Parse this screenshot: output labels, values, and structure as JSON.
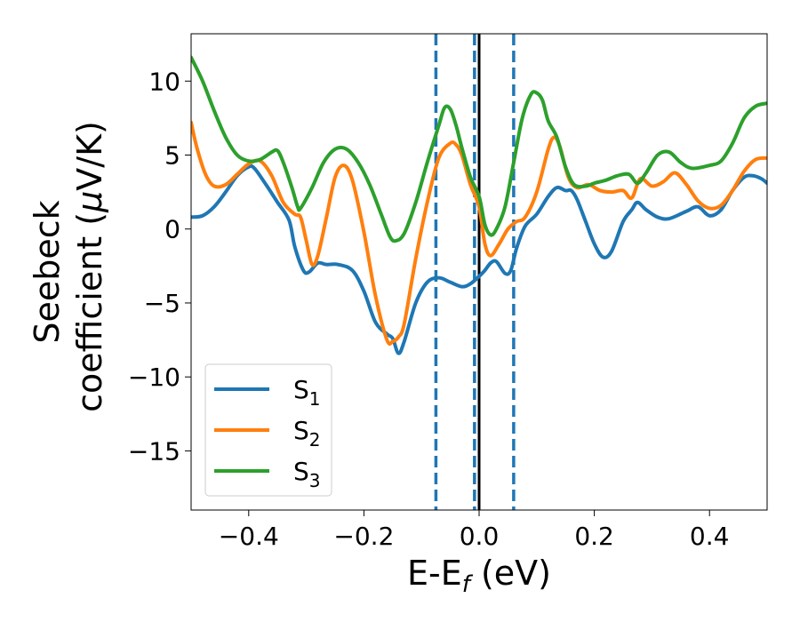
{
  "chart_data": {
    "type": "line",
    "title": "",
    "xlabel": {
      "main": "E-E",
      "sub": "f",
      "suffix": " (eV)"
    },
    "ylabel": {
      "line1": "Seebeck",
      "line2_prefix": "coefficient  (",
      "mu": "μ",
      "line2_suffix": "V/K)"
    },
    "xlim": [
      -0.5,
      0.5
    ],
    "ylim": [
      -19,
      13.2
    ],
    "xticks": [
      -0.4,
      -0.2,
      0.0,
      0.2,
      0.4
    ],
    "xtick_labels": [
      "−0.4",
      "−0.2",
      "0.0",
      "0.2",
      "0.4"
    ],
    "yticks": [
      10,
      5,
      0,
      -5,
      -10,
      -15
    ],
    "ytick_labels": [
      "10",
      "5",
      "0",
      "−5",
      "−10",
      "−15"
    ],
    "grid": false,
    "legend_position": "lower-left",
    "vlines": [
      {
        "x": -0.075,
        "style": "dashed",
        "color": "#1f77b4"
      },
      {
        "x": -0.008,
        "style": "dashed",
        "color": "#1f77b4"
      },
      {
        "x": 0.0,
        "style": "solid",
        "color": "#000000"
      },
      {
        "x": 0.06,
        "style": "dashed",
        "color": "#1f77b4"
      }
    ],
    "series": [
      {
        "name": "S",
        "sub": "1",
        "color": "#1f77b4",
        "points": [
          [
            -0.5,
            0.8
          ],
          [
            -0.48,
            0.9
          ],
          [
            -0.46,
            1.5
          ],
          [
            -0.44,
            2.5
          ],
          [
            -0.42,
            3.6
          ],
          [
            -0.4,
            4.2
          ],
          [
            -0.39,
            4.1
          ],
          [
            -0.37,
            3.0
          ],
          [
            -0.35,
            1.8
          ],
          [
            -0.33,
            0.6
          ],
          [
            -0.32,
            -1.2
          ],
          [
            -0.305,
            -2.8
          ],
          [
            -0.295,
            -2.9
          ],
          [
            -0.28,
            -2.3
          ],
          [
            -0.265,
            -2.4
          ],
          [
            -0.245,
            -2.4
          ],
          [
            -0.22,
            -2.8
          ],
          [
            -0.2,
            -4.2
          ],
          [
            -0.18,
            -6.3
          ],
          [
            -0.16,
            -7.1
          ],
          [
            -0.15,
            -7.4
          ],
          [
            -0.14,
            -8.4
          ],
          [
            -0.13,
            -7.6
          ],
          [
            -0.11,
            -5.0
          ],
          [
            -0.09,
            -3.6
          ],
          [
            -0.07,
            -3.3
          ],
          [
            -0.05,
            -3.6
          ],
          [
            -0.03,
            -3.9
          ],
          [
            -0.015,
            -3.7
          ],
          [
            0.0,
            -3.2
          ],
          [
            0.01,
            -2.8
          ],
          [
            0.02,
            -2.3
          ],
          [
            0.03,
            -2.2
          ],
          [
            0.045,
            -3.0
          ],
          [
            0.055,
            -2.8
          ],
          [
            0.065,
            -1.3
          ],
          [
            0.08,
            0.2
          ],
          [
            0.1,
            1.0
          ],
          [
            0.12,
            2.2
          ],
          [
            0.135,
            2.8
          ],
          [
            0.15,
            2.6
          ],
          [
            0.16,
            2.6
          ],
          [
            0.17,
            2.0
          ],
          [
            0.185,
            0.5
          ],
          [
            0.2,
            -1.0
          ],
          [
            0.215,
            -1.9
          ],
          [
            0.23,
            -1.5
          ],
          [
            0.25,
            0.5
          ],
          [
            0.265,
            1.3
          ],
          [
            0.275,
            1.8
          ],
          [
            0.29,
            1.3
          ],
          [
            0.31,
            0.8
          ],
          [
            0.33,
            0.7
          ],
          [
            0.36,
            1.2
          ],
          [
            0.38,
            1.5
          ],
          [
            0.4,
            0.9
          ],
          [
            0.42,
            1.3
          ],
          [
            0.44,
            2.6
          ],
          [
            0.46,
            3.5
          ],
          [
            0.475,
            3.6
          ],
          [
            0.49,
            3.4
          ],
          [
            0.5,
            3.1
          ]
        ]
      },
      {
        "name": "S",
        "sub": "2",
        "color": "#ff7f0e",
        "points": [
          [
            -0.5,
            7.2
          ],
          [
            -0.49,
            5.5
          ],
          [
            -0.475,
            3.7
          ],
          [
            -0.46,
            2.9
          ],
          [
            -0.44,
            3.0
          ],
          [
            -0.42,
            3.7
          ],
          [
            -0.4,
            4.4
          ],
          [
            -0.38,
            4.6
          ],
          [
            -0.36,
            3.6
          ],
          [
            -0.34,
            1.8
          ],
          [
            -0.32,
            1.0
          ],
          [
            -0.31,
            0.8
          ],
          [
            -0.3,
            -0.8
          ],
          [
            -0.29,
            -2.4
          ],
          [
            -0.28,
            -1.8
          ],
          [
            -0.265,
            0.8
          ],
          [
            -0.25,
            3.5
          ],
          [
            -0.235,
            4.3
          ],
          [
            -0.22,
            3.3
          ],
          [
            -0.2,
            -0.2
          ],
          [
            -0.18,
            -4.5
          ],
          [
            -0.16,
            -7.5
          ],
          [
            -0.15,
            -7.6
          ],
          [
            -0.14,
            -7.3
          ],
          [
            -0.13,
            -6.4
          ],
          [
            -0.11,
            -2.0
          ],
          [
            -0.09,
            1.8
          ],
          [
            -0.07,
            4.8
          ],
          [
            -0.05,
            5.8
          ],
          [
            -0.04,
            5.7
          ],
          [
            -0.03,
            5.0
          ],
          [
            -0.015,
            3.0
          ],
          [
            0.0,
            1.5
          ],
          [
            0.01,
            -1.0
          ],
          [
            0.02,
            -1.8
          ],
          [
            0.035,
            -1.0
          ],
          [
            0.05,
            0.0
          ],
          [
            0.065,
            0.5
          ],
          [
            0.08,
            0.8
          ],
          [
            0.1,
            2.5
          ],
          [
            0.12,
            5.4
          ],
          [
            0.13,
            6.2
          ],
          [
            0.14,
            5.6
          ],
          [
            0.155,
            3.5
          ],
          [
            0.17,
            2.8
          ],
          [
            0.19,
            3.0
          ],
          [
            0.21,
            2.6
          ],
          [
            0.23,
            2.5
          ],
          [
            0.25,
            2.6
          ],
          [
            0.265,
            2.1
          ],
          [
            0.28,
            3.4
          ],
          [
            0.3,
            2.9
          ],
          [
            0.32,
            3.2
          ],
          [
            0.34,
            3.8
          ],
          [
            0.36,
            3.0
          ],
          [
            0.38,
            1.9
          ],
          [
            0.4,
            1.4
          ],
          [
            0.42,
            1.6
          ],
          [
            0.44,
            2.6
          ],
          [
            0.46,
            3.9
          ],
          [
            0.48,
            4.7
          ],
          [
            0.5,
            4.8
          ]
        ]
      },
      {
        "name": "S",
        "sub": "3",
        "color": "#2ca02c",
        "points": [
          [
            -0.5,
            11.6
          ],
          [
            -0.48,
            10.0
          ],
          [
            -0.46,
            8.0
          ],
          [
            -0.44,
            6.2
          ],
          [
            -0.42,
            5.0
          ],
          [
            -0.4,
            4.6
          ],
          [
            -0.38,
            4.7
          ],
          [
            -0.36,
            5.2
          ],
          [
            -0.35,
            5.3
          ],
          [
            -0.34,
            4.5
          ],
          [
            -0.325,
            2.8
          ],
          [
            -0.315,
            1.5
          ],
          [
            -0.31,
            1.4
          ],
          [
            -0.29,
            2.8
          ],
          [
            -0.27,
            4.5
          ],
          [
            -0.25,
            5.4
          ],
          [
            -0.23,
            5.4
          ],
          [
            -0.21,
            4.5
          ],
          [
            -0.19,
            3.0
          ],
          [
            -0.17,
            1.0
          ],
          [
            -0.155,
            -0.5
          ],
          [
            -0.145,
            -0.8
          ],
          [
            -0.13,
            -0.3
          ],
          [
            -0.11,
            1.8
          ],
          [
            -0.09,
            4.5
          ],
          [
            -0.07,
            7.0
          ],
          [
            -0.06,
            8.2
          ],
          [
            -0.05,
            8.1
          ],
          [
            -0.04,
            7.0
          ],
          [
            -0.03,
            5.5
          ],
          [
            -0.015,
            3.5
          ],
          [
            0.0,
            2.2
          ],
          [
            0.01,
            0.3
          ],
          [
            0.02,
            -0.4
          ],
          [
            0.03,
            0.0
          ],
          [
            0.045,
            1.5
          ],
          [
            0.06,
            4.5
          ],
          [
            0.075,
            7.5
          ],
          [
            0.09,
            9.1
          ],
          [
            0.1,
            9.2
          ],
          [
            0.11,
            8.7
          ],
          [
            0.12,
            7.3
          ],
          [
            0.135,
            6.2
          ],
          [
            0.15,
            4.2
          ],
          [
            0.165,
            3.0
          ],
          [
            0.185,
            2.9
          ],
          [
            0.2,
            3.1
          ],
          [
            0.22,
            3.3
          ],
          [
            0.24,
            3.6
          ],
          [
            0.26,
            3.7
          ],
          [
            0.275,
            3.1
          ],
          [
            0.29,
            3.8
          ],
          [
            0.31,
            5.0
          ],
          [
            0.33,
            5.2
          ],
          [
            0.35,
            4.5
          ],
          [
            0.37,
            4.1
          ],
          [
            0.4,
            4.3
          ],
          [
            0.42,
            4.6
          ],
          [
            0.44,
            5.8
          ],
          [
            0.46,
            7.5
          ],
          [
            0.48,
            8.3
          ],
          [
            0.5,
            8.5
          ]
        ]
      }
    ]
  }
}
